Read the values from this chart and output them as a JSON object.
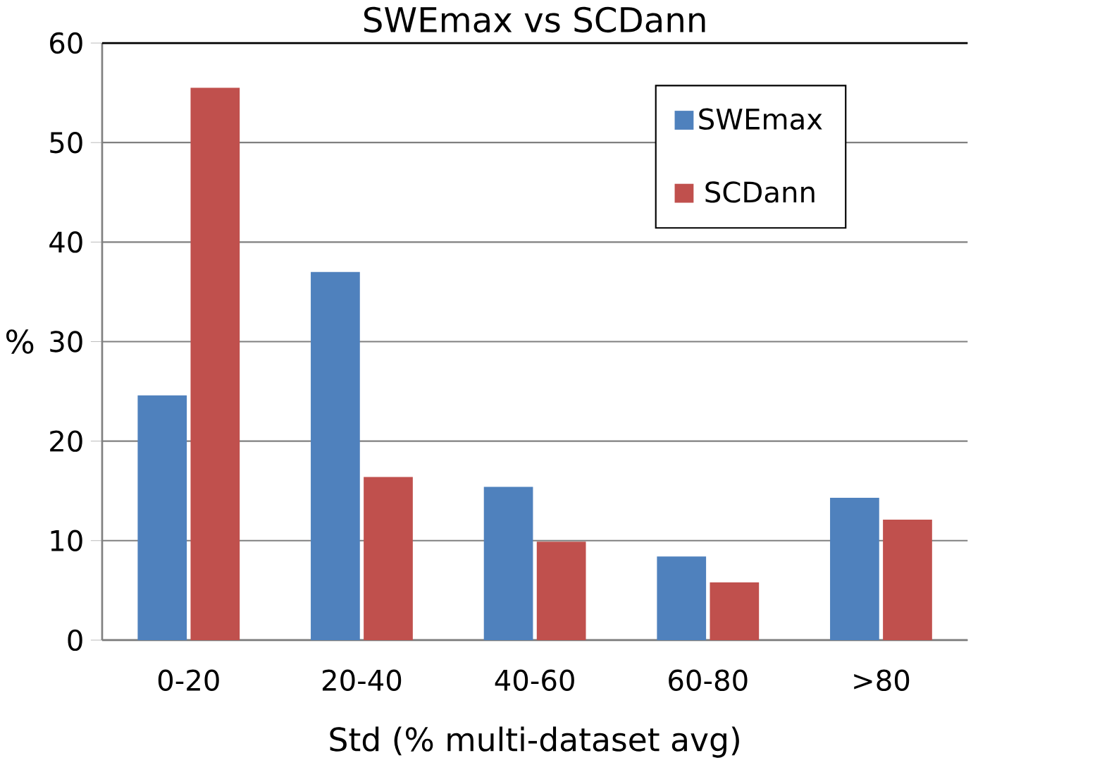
{
  "chart_data": {
    "type": "bar",
    "title": "SWEmax vs SCDann",
    "xlabel": "Std (% multi-dataset avg)",
    "ylabel": "%",
    "categories": [
      "0-20",
      "20-40",
      "40-60",
      "60-80",
      ">80"
    ],
    "series": [
      {
        "name": "SWEmax",
        "color": "#4f81bd",
        "values": [
          24.6,
          37.0,
          15.4,
          8.4,
          14.3
        ]
      },
      {
        "name": "SCDann",
        "color": "#c0504d",
        "values": [
          55.5,
          16.4,
          9.9,
          5.8,
          12.1
        ]
      }
    ],
    "ylim": [
      0,
      60
    ],
    "yticks": [
      0,
      10,
      20,
      30,
      40,
      50,
      60
    ],
    "grid": "y",
    "legend": "top right"
  }
}
